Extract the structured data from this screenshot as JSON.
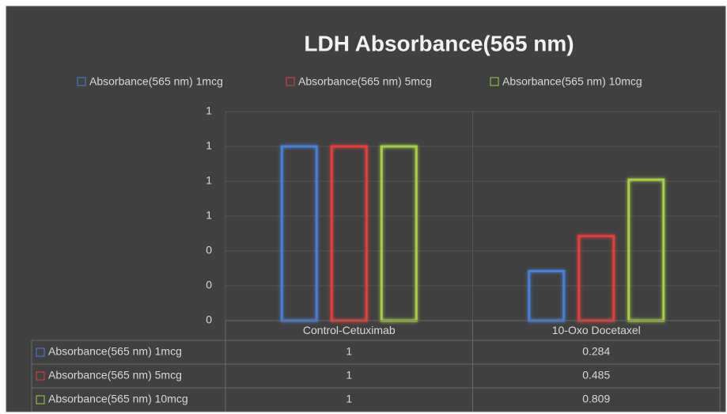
{
  "chart_data": {
    "type": "bar",
    "title": "LDH Absorbance(565 nm)",
    "categories": [
      "Control-Cetuximab",
      "10-Oxo Docetaxel"
    ],
    "series": [
      {
        "name": "Absorbance(565 nm)  1mcg",
        "color": "#4a7fd4",
        "values": [
          1,
          0.284
        ]
      },
      {
        "name": "Absorbance(565 nm)  5mcg",
        "color": "#e0403c",
        "values": [
          1,
          0.485
        ]
      },
      {
        "name": "Absorbance(565 nm)  10mcg",
        "color": "#a6cc4a",
        "values": [
          1,
          0.809
        ]
      }
    ],
    "ylim": [
      0,
      1.2
    ],
    "yticks": [
      0,
      {
        "value": 0.2,
        "label": "0"
      },
      {
        "value": 0.4,
        "label": "0"
      },
      {
        "value": 0.6,
        "label": "1"
      },
      {
        "value": 0.8,
        "label": "1"
      },
      1,
      {
        "value": 1.2,
        "label": "1"
      }
    ],
    "grid": true,
    "legend": "top",
    "data_table": true
  }
}
